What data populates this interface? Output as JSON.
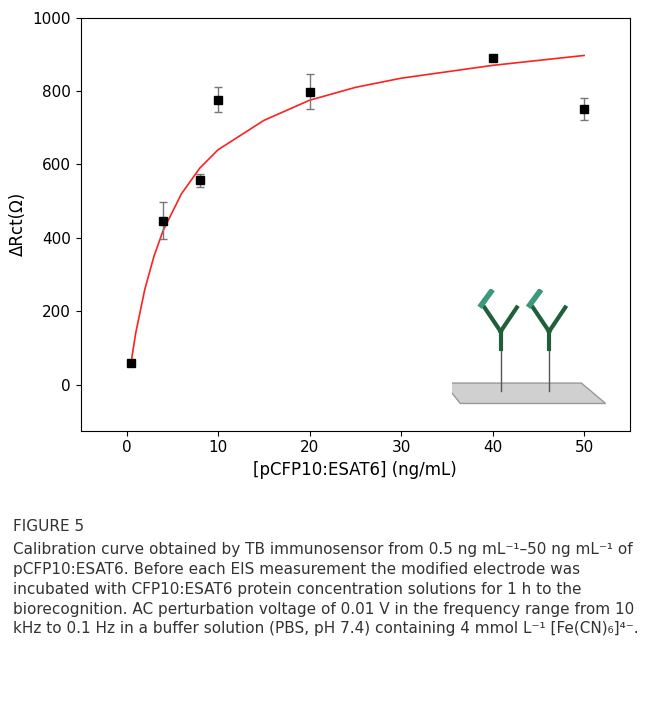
{
  "chart_data": {
    "type": "scatter",
    "title": "FIGURE 5",
    "caption": "Calibration curve obtained by TB immunosensor from 0.5 ng mL⁻¹–50 ng mL⁻¹ of pCFP10:ESAT6. Before each EIS measurement the modified electrode was incubated with CFP10:ESAT6 protein concentration solutions for 1 h to the biorecognition. AC perturbation voltage of 0.01 V in the frequency range from 10 kHz to 0.1 Hz in a buffer solution (PBS, pH 7.4) containing 4 mmol L⁻¹ [Fe(CN)₆]⁴⁻.",
    "x_label": "[pCFP10:ESAT6] (ng/mL)",
    "y_label": "ΔRct(Ω)",
    "xlim": [
      -5,
      55
    ],
    "xticks": [
      0,
      10,
      20,
      30,
      40,
      50
    ],
    "ylim": [
      -125,
      1000
    ],
    "yticks": [
      0,
      200,
      400,
      600,
      800,
      1000
    ],
    "grid": false,
    "series": [
      {
        "type": "scatter",
        "color": "#000000",
        "marker": "square",
        "x": [
          0.5,
          4,
          8,
          10,
          20,
          40,
          50
        ],
        "values": [
          58,
          447,
          557,
          777,
          798,
          890,
          752
        ],
        "errors": [
          5,
          50,
          18,
          35,
          48,
          8,
          30
        ]
      },
      {
        "type": "line",
        "color": "#ff2020",
        "line_style": "solid",
        "x": [
          0.5,
          1,
          2,
          3,
          4,
          6,
          8,
          10,
          15,
          20,
          25,
          30,
          40,
          50
        ],
        "values": [
          60,
          140,
          260,
          350,
          420,
          520,
          590,
          640,
          720,
          775,
          810,
          835,
          870,
          897
        ]
      }
    ]
  }
}
